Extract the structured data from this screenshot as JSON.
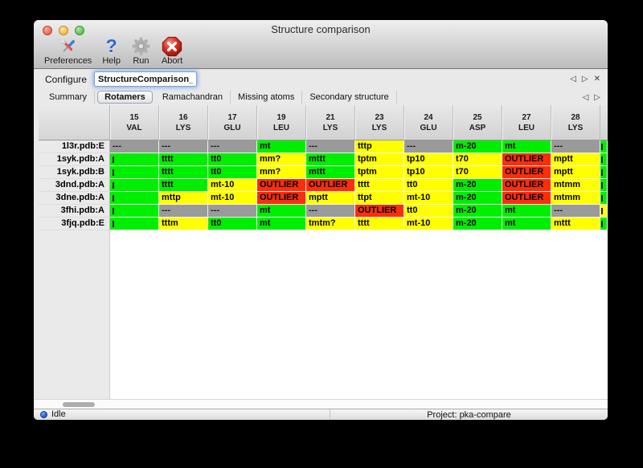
{
  "window": {
    "title": "Structure comparison"
  },
  "toolbar": {
    "items": [
      {
        "label": "Preferences",
        "icon": "tools-icon"
      },
      {
        "label": "Help",
        "icon": "question-icon"
      },
      {
        "label": "Run",
        "icon": "gear-icon"
      },
      {
        "label": "Abort",
        "icon": "abort-icon"
      }
    ]
  },
  "icons": {
    "back": "◁",
    "forward": "▷",
    "close": "✕",
    "help_glyph": "?"
  },
  "configure": {
    "label": "Configure",
    "value": "StructureComparison_1"
  },
  "tabs": {
    "items": [
      "Summary",
      "Rotamers",
      "Ramachandran",
      "Missing atoms",
      "Secondary structure"
    ],
    "selected": "Rotamers"
  },
  "colors": {
    "green": "#00EE00",
    "yellow": "#FFFF00",
    "red": "#FA2E0C",
    "gray": "#9A9A9A"
  },
  "table": {
    "columns": [
      {
        "num": "15",
        "res": "VAL"
      },
      {
        "num": "16",
        "res": "LYS"
      },
      {
        "num": "17",
        "res": "GLU"
      },
      {
        "num": "19",
        "res": "LEU"
      },
      {
        "num": "21",
        "res": "LYS"
      },
      {
        "num": "23",
        "res": "LYS"
      },
      {
        "num": "24",
        "res": "GLU"
      },
      {
        "num": "25",
        "res": "ASP"
      },
      {
        "num": "27",
        "res": "LEU"
      },
      {
        "num": "28",
        "res": "LYS"
      }
    ],
    "rows": [
      {
        "label": "1l3r.pdb:E",
        "overflow": "green",
        "cells": [
          {
            "t": "---",
            "c": "gray"
          },
          {
            "t": "---",
            "c": "gray"
          },
          {
            "t": "---",
            "c": "gray"
          },
          {
            "t": "mt",
            "c": "green"
          },
          {
            "t": "---",
            "c": "gray"
          },
          {
            "t": "tttp",
            "c": "yellow"
          },
          {
            "t": "---",
            "c": "gray"
          },
          {
            "t": "m-20",
            "c": "green"
          },
          {
            "t": "mt",
            "c": "green"
          },
          {
            "t": "---",
            "c": "gray"
          }
        ]
      },
      {
        "label": "1syk.pdb:A",
        "overflow": "green",
        "cells": [
          {
            "t": "",
            "c": "green",
            "sliver": true
          },
          {
            "t": "tttt",
            "c": "green"
          },
          {
            "t": "tt0",
            "c": "green"
          },
          {
            "t": "mm?",
            "c": "yellow"
          },
          {
            "t": "mttt",
            "c": "green"
          },
          {
            "t": "tptm",
            "c": "yellow"
          },
          {
            "t": "tp10",
            "c": "yellow"
          },
          {
            "t": "t70",
            "c": "yellow"
          },
          {
            "t": "OUTLIER",
            "c": "red"
          },
          {
            "t": "mptt",
            "c": "yellow"
          }
        ]
      },
      {
        "label": "1syk.pdb:B",
        "overflow": "green",
        "cells": [
          {
            "t": "",
            "c": "green",
            "sliver": true
          },
          {
            "t": "tttt",
            "c": "green"
          },
          {
            "t": "tt0",
            "c": "green"
          },
          {
            "t": "mm?",
            "c": "yellow"
          },
          {
            "t": "mttt",
            "c": "green"
          },
          {
            "t": "tptm",
            "c": "yellow"
          },
          {
            "t": "tp10",
            "c": "yellow"
          },
          {
            "t": "t70",
            "c": "yellow"
          },
          {
            "t": "OUTLIER",
            "c": "red"
          },
          {
            "t": "mptt",
            "c": "yellow"
          }
        ]
      },
      {
        "label": "3dnd.pdb:A",
        "overflow": "green",
        "cells": [
          {
            "t": "",
            "c": "green",
            "sliver": true
          },
          {
            "t": "tttt",
            "c": "green"
          },
          {
            "t": "mt-10",
            "c": "yellow"
          },
          {
            "t": "OUTLIER",
            "c": "red"
          },
          {
            "t": "OUTLIER",
            "c": "red"
          },
          {
            "t": "tttt",
            "c": "yellow"
          },
          {
            "t": "tt0",
            "c": "yellow"
          },
          {
            "t": "m-20",
            "c": "green"
          },
          {
            "t": "OUTLIER",
            "c": "red"
          },
          {
            "t": "mtmm",
            "c": "yellow"
          }
        ]
      },
      {
        "label": "3dne.pdb:A",
        "overflow": "green",
        "cells": [
          {
            "t": "",
            "c": "green",
            "sliver": true
          },
          {
            "t": "mttp",
            "c": "yellow"
          },
          {
            "t": "mt-10",
            "c": "yellow"
          },
          {
            "t": "OUTLIER",
            "c": "red"
          },
          {
            "t": "mptt",
            "c": "yellow"
          },
          {
            "t": "ttpt",
            "c": "yellow"
          },
          {
            "t": "mt-10",
            "c": "yellow"
          },
          {
            "t": "m-20",
            "c": "green"
          },
          {
            "t": "OUTLIER",
            "c": "red"
          },
          {
            "t": "mtmm",
            "c": "yellow"
          }
        ]
      },
      {
        "label": "3fhi.pdb:A",
        "overflow": "yellow",
        "cells": [
          {
            "t": "",
            "c": "green",
            "sliver": true
          },
          {
            "t": "---",
            "c": "gray"
          },
          {
            "t": "---",
            "c": "gray"
          },
          {
            "t": "mt",
            "c": "green"
          },
          {
            "t": "---",
            "c": "gray"
          },
          {
            "t": "OUTLIER",
            "c": "red"
          },
          {
            "t": "tt0",
            "c": "yellow"
          },
          {
            "t": "m-20",
            "c": "green"
          },
          {
            "t": "mt",
            "c": "green"
          },
          {
            "t": "---",
            "c": "gray"
          }
        ]
      },
      {
        "label": "3fjq.pdb:E",
        "overflow": "green",
        "cells": [
          {
            "t": "",
            "c": "green",
            "sliver": true
          },
          {
            "t": "tttm",
            "c": "yellow"
          },
          {
            "t": "tt0",
            "c": "green"
          },
          {
            "t": "mt",
            "c": "green"
          },
          {
            "t": "tmtm?",
            "c": "yellow"
          },
          {
            "t": "tttt",
            "c": "yellow"
          },
          {
            "t": "mt-10",
            "c": "yellow"
          },
          {
            "t": "m-20",
            "c": "green"
          },
          {
            "t": "mt",
            "c": "green"
          },
          {
            "t": "mttt",
            "c": "yellow"
          }
        ]
      }
    ]
  },
  "statusbar": {
    "status": "Idle",
    "project": "Project: pka-compare"
  }
}
